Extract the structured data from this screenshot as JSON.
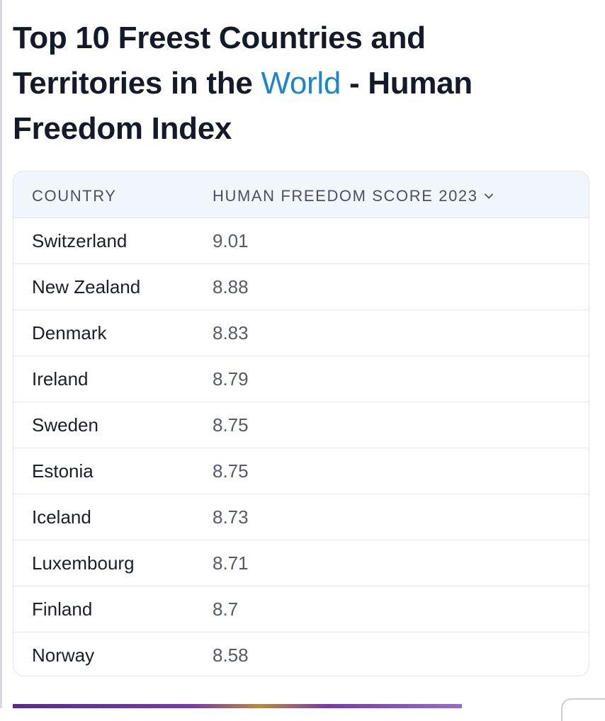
{
  "heading": {
    "before": "Top 10 Freest Countries and Territories in the ",
    "link": "World",
    "after": " - Human Freedom Index"
  },
  "colors": {
    "link": "#1d86c8",
    "header_bg": "#f1f6fd"
  },
  "table": {
    "columns": {
      "country": "COUNTRY",
      "score": "HUMAN FREEDOM SCORE 2023",
      "sort_icon": "chevron-down-icon"
    },
    "rows": [
      {
        "country": "Switzerland",
        "score": "9.01"
      },
      {
        "country": "New Zealand",
        "score": "8.88"
      },
      {
        "country": "Denmark",
        "score": "8.83"
      },
      {
        "country": "Ireland",
        "score": "8.79"
      },
      {
        "country": "Sweden",
        "score": "8.75"
      },
      {
        "country": "Estonia",
        "score": "8.75"
      },
      {
        "country": "Iceland",
        "score": "8.73"
      },
      {
        "country": "Luxembourg",
        "score": "8.71"
      },
      {
        "country": "Finland",
        "score": "8.7"
      },
      {
        "country": "Norway",
        "score": "8.58"
      }
    ]
  }
}
